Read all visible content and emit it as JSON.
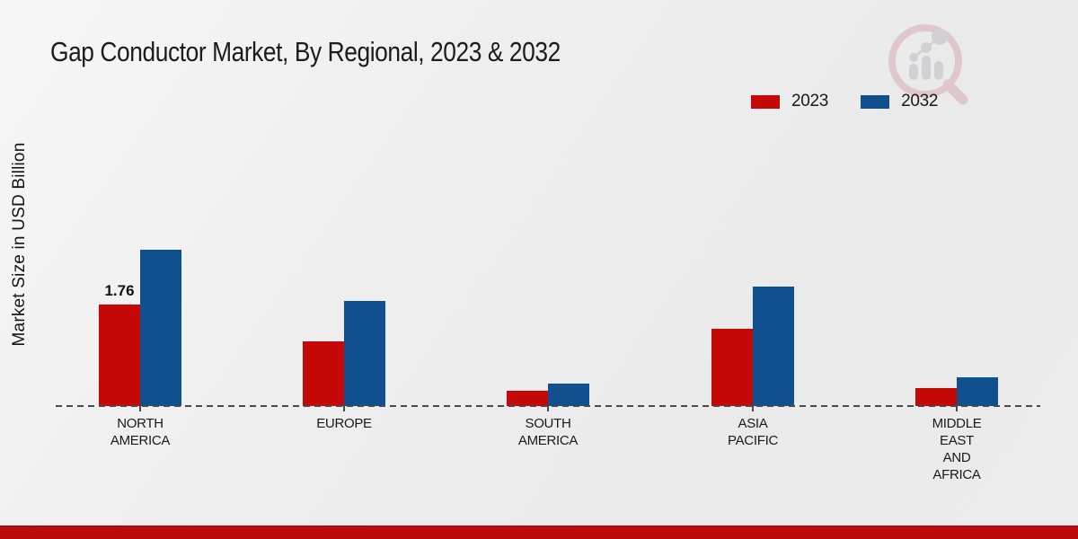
{
  "title": "Gap Conductor Market, By Regional, 2023 & 2032",
  "y_axis_label": "Market Size in USD Billion",
  "colors": {
    "series_2023": "#c50808",
    "series_2032": "#11508f",
    "bottom_bar": "#bb0b0b",
    "axis": "#4a4a4a",
    "watermark_ring": "#d4a7ac",
    "watermark_bars": "#b9b9c1"
  },
  "legend": {
    "items": [
      {
        "label": "2023",
        "color": "#c50808"
      },
      {
        "label": "2032",
        "color": "#11508f"
      }
    ]
  },
  "icons": {
    "watermark": "magnifier-bar-chart-logo"
  },
  "chart_data": {
    "type": "bar",
    "title": "Gap Conductor Market, By Regional, 2023 & 2032",
    "xlabel": "",
    "ylabel": "Market Size in USD Billion",
    "ylim": [
      0,
      3
    ],
    "grid": false,
    "legend_position": "top-right",
    "baseline_style": "dashed",
    "categories": [
      "NORTH AMERICA",
      "EUROPE",
      "SOUTH AMERICA",
      "ASIA PACIFIC",
      "MIDDLE EAST AND AFRICA"
    ],
    "category_lines": [
      [
        "NORTH",
        "AMERICA"
      ],
      [
        "EUROPE"
      ],
      [
        "SOUTH",
        "AMERICA"
      ],
      [
        "ASIA",
        "PACIFIC"
      ],
      [
        "MIDDLE",
        "EAST",
        "AND",
        "AFRICA"
      ]
    ],
    "series": [
      {
        "name": "2023",
        "color": "#c50808",
        "values": [
          1.76,
          1.12,
          0.26,
          1.34,
          0.31
        ],
        "value_labels": [
          "1.76",
          "",
          "",
          "",
          ""
        ]
      },
      {
        "name": "2032",
        "color": "#11508f",
        "values": [
          2.71,
          1.82,
          0.39,
          2.07,
          0.5
        ],
        "value_labels": [
          "",
          "",
          "",
          "",
          ""
        ]
      }
    ]
  }
}
